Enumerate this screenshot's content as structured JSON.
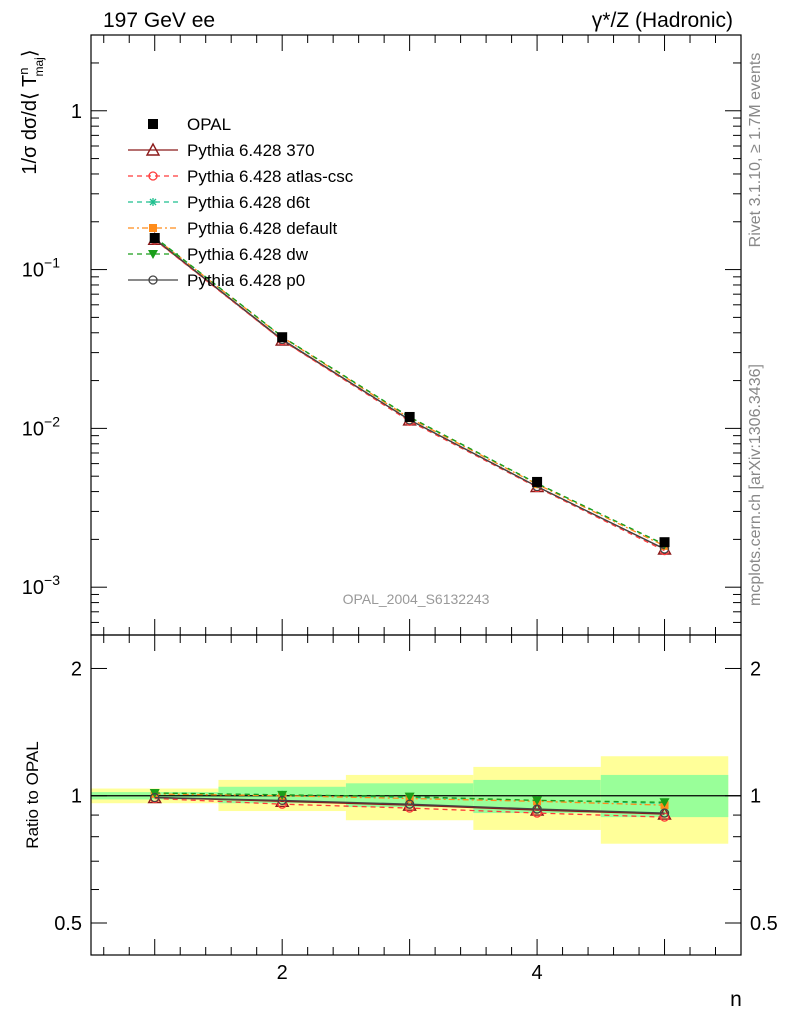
{
  "header": {
    "left": "197 GeV ee",
    "right": "γ*/Z (Hadronic)"
  },
  "side_labels": {
    "rivet": "Rivet 3.1.10, ≥ 1.7M events",
    "mcplots": "mcplots.cern.ch [arXiv:1306.3436]"
  },
  "watermark": "OPAL_2004_S6132243",
  "chart_data": [
    {
      "type": "line",
      "panel": "main",
      "ylabel_parts": {
        "prefix": "1/σ dσ/d⟨ T",
        "sup": "n",
        "sub": "maj",
        "suffix": "⟩"
      },
      "yscale": "log",
      "ylim": [
        0.0005,
        3
      ],
      "xlim": [
        0.5,
        5.6
      ],
      "ytick_labels": [
        {
          "value": 1,
          "base": "1",
          "exp": ""
        },
        {
          "value": 0.1,
          "base": "10",
          "exp": "−1"
        },
        {
          "value": 0.01,
          "base": "10",
          "exp": "−2"
        },
        {
          "value": 0.001,
          "base": "10",
          "exp": "−3"
        }
      ],
      "legend_placement": "top-left",
      "x": [
        1,
        2,
        3,
        4,
        5
      ],
      "data": {
        "name": "OPAL",
        "values": [
          0.158,
          0.0375,
          0.0118,
          0.0046,
          0.00192
        ],
        "bin_edges": [
          0.5,
          1.5,
          2.5,
          3.5,
          4.5,
          5.5
        ]
      },
      "series": [
        {
          "name": "Pythia 6.428 370",
          "color": "#8b1a1a",
          "dash": "",
          "marker": "triangle-open",
          "values": [
            0.155,
            0.036,
            0.0113,
            0.0043,
            0.00174
          ]
        },
        {
          "name": "Pythia 6.428 atlas-csc",
          "color": "#ff3b3b",
          "dash": "5,4",
          "marker": "circle-open",
          "values": [
            0.154,
            0.0358,
            0.0111,
            0.00425,
            0.0017
          ]
        },
        {
          "name": "Pythia 6.428 d6t",
          "color": "#1fbf8f",
          "dash": "5,4",
          "marker": "star",
          "values": [
            0.16,
            0.0378,
            0.0117,
            0.0045,
            0.00185
          ]
        },
        {
          "name": "Pythia 6.428 default",
          "color": "#ff8c1a",
          "dash": "6,3,2,3",
          "marker": "square",
          "values": [
            0.159,
            0.0376,
            0.0116,
            0.00445,
            0.00182
          ]
        },
        {
          "name": "Pythia 6.428 dw",
          "color": "#1a9e1a",
          "dash": "5,4",
          "marker": "triangle-down",
          "values": [
            0.16,
            0.0378,
            0.0118,
            0.0045,
            0.00186
          ]
        },
        {
          "name": "Pythia 6.428 p0",
          "color": "#444444",
          "dash": "",
          "marker": "circle-open",
          "values": [
            0.156,
            0.0363,
            0.0113,
            0.0043,
            0.00174
          ]
        }
      ]
    },
    {
      "type": "line",
      "panel": "ratio",
      "ylabel": "Ratio to OPAL",
      "yscale": "log",
      "ylim": [
        0.42,
        2.4
      ],
      "xlim": [
        0.5,
        5.6
      ],
      "xlabel": "n",
      "xtick_labels": [
        "2",
        "4"
      ],
      "ytick_labels": [
        "0.5",
        "1",
        "2"
      ],
      "bands": [
        {
          "bin": [
            0.5,
            1.5
          ],
          "inner": [
            0.98,
            1.02
          ],
          "outer": [
            0.96,
            1.04
          ]
        },
        {
          "bin": [
            1.5,
            2.5
          ],
          "inner": [
            0.96,
            1.05
          ],
          "outer": [
            0.92,
            1.09
          ]
        },
        {
          "bin": [
            2.5,
            3.5
          ],
          "inner": [
            0.94,
            1.07
          ],
          "outer": [
            0.875,
            1.12
          ]
        },
        {
          "bin": [
            3.5,
            4.5
          ],
          "inner": [
            0.91,
            1.09
          ],
          "outer": [
            0.83,
            1.17
          ]
        },
        {
          "bin": [
            4.5,
            5.5
          ],
          "inner": [
            0.89,
            1.12
          ],
          "outer": [
            0.77,
            1.24
          ]
        }
      ],
      "x": [
        1,
        2,
        3,
        4,
        5
      ],
      "series": [
        {
          "name": "Pythia 6.428 370",
          "values": [
            0.99,
            0.97,
            0.95,
            0.925,
            0.905
          ]
        },
        {
          "name": "Pythia 6.428 atlas-csc",
          "values": [
            0.985,
            0.955,
            0.935,
            0.91,
            0.89
          ]
        },
        {
          "name": "Pythia 6.428 d6t",
          "values": [
            1.015,
            1.005,
            0.99,
            0.975,
            0.96
          ]
        },
        {
          "name": "Pythia 6.428 default",
          "values": [
            1.01,
            1.0,
            0.985,
            0.97,
            0.95
          ]
        },
        {
          "name": "Pythia 6.428 dw",
          "values": [
            1.015,
            1.005,
            0.995,
            0.975,
            0.965
          ]
        },
        {
          "name": "Pythia 6.428 p0",
          "values": [
            0.99,
            0.975,
            0.955,
            0.93,
            0.91
          ]
        }
      ]
    }
  ]
}
